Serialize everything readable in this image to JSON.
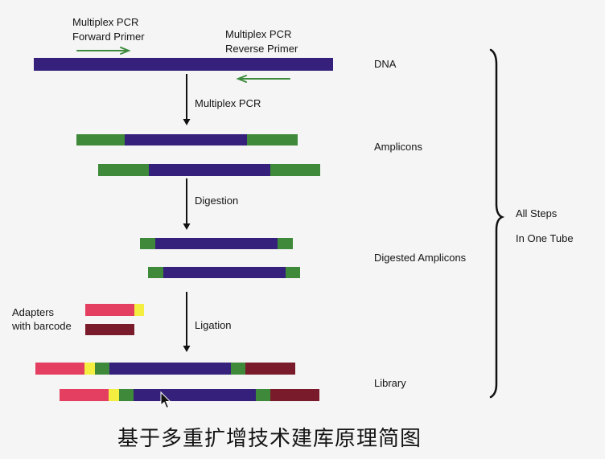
{
  "primers": {
    "forward": {
      "line1": "Multiplex PCR",
      "line2": "Forward Primer"
    },
    "reverse": {
      "line1": "Multiplex PCR",
      "line2": "Reverse Primer"
    }
  },
  "steps": [
    "Multiplex PCR",
    "Digestion",
    "Ligation"
  ],
  "stages": [
    "DNA",
    "Amplicons",
    "Digested Amplicons",
    "Library"
  ],
  "adapters": {
    "line1": "Adapters",
    "line2": "with barcode"
  },
  "brace": {
    "line1": "All Steps",
    "line2": "In One Tube"
  },
  "caption": "基于多重扩增技术建库原理简图",
  "colors": {
    "background": "#f5f5f5",
    "text": "#151515",
    "dna": "#35217b",
    "primer-flank": "#3f8a3a",
    "adapter-a": "#e43f60",
    "barcode": "#f3ee40",
    "adapter-b": "#7a1b2b",
    "arrow": "#111111",
    "primer-arrow": "#3d8b3d"
  },
  "icons": {
    "primer_arrows": "arrow-right-icon / arrow-left-icon",
    "step_arrows": "arrow-down-icon",
    "brace": "right-curly-brace",
    "pointer": "mouse-pointer-icon"
  }
}
